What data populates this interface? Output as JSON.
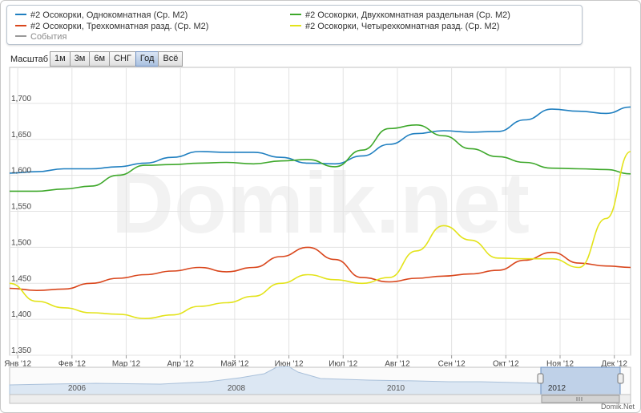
{
  "legend": [
    {
      "label": "#2 Осокорки, Однокомнатная (Ср. М2)",
      "color": "#1f7fc0"
    },
    {
      "label": "#2 Осокорки, Двухкомнатная раздельная (Ср. М2)",
      "color": "#3ea82b"
    },
    {
      "label": "#2 Осокорки, Трехкомнатная разд. (Ср. М2)",
      "color": "#d9461c"
    },
    {
      "label": "#2 Осокорки, Четырехкомнатная разд. (Ср. М2)",
      "color": "#e3e31a"
    },
    {
      "label": "События",
      "color": "#9a9a9a"
    }
  ],
  "zoom": {
    "label": "Масштаб",
    "buttons": [
      "1м",
      "3м",
      "6м",
      "СНГ",
      "Год",
      "Всё"
    ],
    "active": "Год"
  },
  "watermark": "Domik.net",
  "footer": "Domik.Net",
  "navigator": {
    "years": [
      "2006",
      "2008",
      "2010",
      "2012"
    ]
  },
  "chart_data": {
    "type": "line",
    "title": "",
    "xlabel": "",
    "ylabel": "",
    "ylim": [
      1350,
      1750
    ],
    "yticks": [
      1350,
      1400,
      1450,
      1500,
      1550,
      1600,
      1650,
      1700
    ],
    "ytick_labels": [
      "1,350",
      "1,400",
      "1,450",
      "1,500",
      "1,550",
      "1,600",
      "1,650",
      "1,700"
    ],
    "xlim": [
      0,
      11.45
    ],
    "x_ticks": [
      0.15,
      1.15,
      2.15,
      3.15,
      4.15,
      5.15,
      6.15,
      7.15,
      8.15,
      9.15,
      10.15,
      11.15
    ],
    "x_tick_labels": [
      "Янв '12",
      "Фев '12",
      "Мар '12",
      "Апр '12",
      "Май '12",
      "Июн '12",
      "Июл '12",
      "Авг '12",
      "Сен '12",
      "Окт '12",
      "Ноя '12",
      "Дек '12"
    ],
    "grid": true,
    "series": [
      {
        "name": "#2 Осокорки, Однокомнатная (Ср. М2)",
        "color": "#1f7fc0",
        "x": [
          0,
          0.5,
          1.0,
          1.5,
          2.0,
          2.5,
          3.0,
          3.5,
          4.0,
          4.5,
          5.0,
          5.5,
          6.0,
          6.5,
          7.0,
          7.5,
          8.0,
          8.5,
          9.0,
          9.5,
          10.0,
          10.5,
          11.0,
          11.45
        ],
        "values": [
          1603,
          1605,
          1609,
          1609,
          1612,
          1617,
          1625,
          1633,
          1632,
          1632,
          1625,
          1617,
          1616,
          1627,
          1643,
          1658,
          1662,
          1660,
          1661,
          1677,
          1692,
          1689,
          1686,
          1695
        ]
      },
      {
        "name": "#2 Осокорки, Двухкомнатная раздельная (Ср. М2)",
        "color": "#3ea82b",
        "x": [
          0,
          0.5,
          1.0,
          1.5,
          2.0,
          2.5,
          3.0,
          3.5,
          4.0,
          4.5,
          5.0,
          5.5,
          6.0,
          6.5,
          7.0,
          7.5,
          8.0,
          8.5,
          9.0,
          9.5,
          10.0,
          10.5,
          11.0,
          11.45
        ],
        "values": [
          1578,
          1578,
          1581,
          1585,
          1600,
          1614,
          1615,
          1617,
          1618,
          1616,
          1620,
          1622,
          1612,
          1635,
          1665,
          1670,
          1655,
          1637,
          1626,
          1618,
          1610,
          1609,
          1608,
          1602
        ]
      },
      {
        "name": "#2 Осокорки, Трехкомнатная разд. (Ср. М2)",
        "color": "#d9461c",
        "x": [
          0,
          0.5,
          1.0,
          1.5,
          2.0,
          2.5,
          3.0,
          3.5,
          4.0,
          4.5,
          5.0,
          5.5,
          6.0,
          6.5,
          7.0,
          7.5,
          8.0,
          8.5,
          9.0,
          9.5,
          10.0,
          10.5,
          11.0,
          11.45
        ],
        "values": [
          1443,
          1440,
          1442,
          1450,
          1457,
          1462,
          1467,
          1472,
          1466,
          1472,
          1487,
          1500,
          1483,
          1458,
          1452,
          1457,
          1460,
          1463,
          1468,
          1482,
          1493,
          1478,
          1474,
          1472
        ]
      },
      {
        "name": "#2 Осокорки, Четырехкомнатная разд. (Ср. М2)",
        "color": "#e3e31a",
        "x": [
          0,
          0.5,
          1.0,
          1.5,
          2.0,
          2.5,
          3.0,
          3.5,
          4.0,
          4.5,
          5.0,
          5.5,
          6.0,
          6.5,
          7.0,
          7.5,
          8.0,
          8.5,
          9.0,
          9.5,
          10.0,
          10.5,
          11.0,
          11.45
        ],
        "values": [
          1450,
          1425,
          1416,
          1409,
          1407,
          1401,
          1406,
          1418,
          1423,
          1432,
          1450,
          1462,
          1455,
          1450,
          1458,
          1495,
          1530,
          1510,
          1485,
          1484,
          1484,
          1472,
          1540,
          1633
        ]
      }
    ]
  }
}
